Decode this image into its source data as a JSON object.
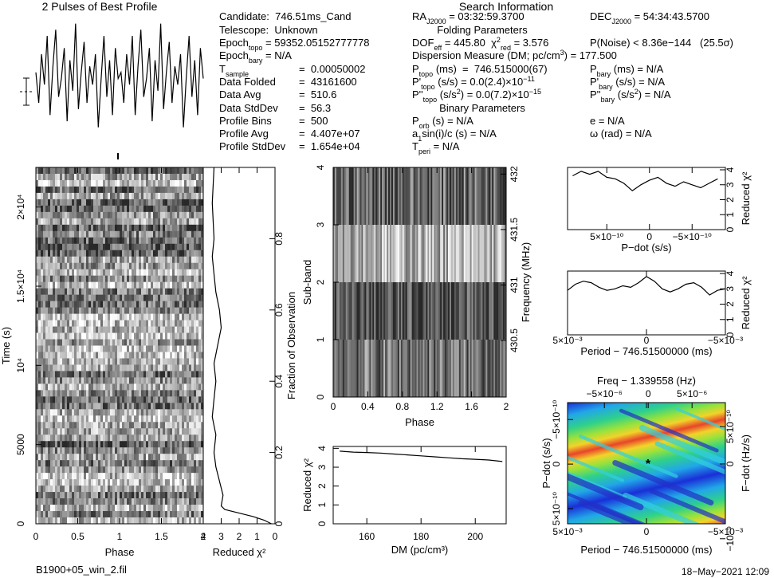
{
  "info": {
    "title": "Search Information",
    "rows": [
      {
        "left": [
          "Candidate:  746.51ms_Cand"
        ],
        "mid": [
          "RA",
          {
            "sub": "J2000"
          },
          " = 03:32:59.3700"
        ],
        "right": [
          "DEC",
          {
            "sub": "J2000"
          },
          " = 54:34:43.5700"
        ]
      },
      {
        "left": [
          "Telescope:  Unknown"
        ],
        "heading": "Folding Parameters"
      },
      {
        "left": [
          "Epoch",
          {
            "sub": "topo"
          },
          " = 59352.05152777778"
        ],
        "mid": [
          "DOF",
          {
            "sub": "eff"
          },
          " = 445.80  χ",
          {
            "sup": "2"
          },
          {
            "sub": "red"
          },
          " = 3.576"
        ],
        "right": [
          "P(Noise) < 8.36e−144   (25.5σ)"
        ]
      },
      {
        "left": [
          "Epoch",
          {
            "sub": "bary"
          },
          " = N/A"
        ],
        "mid": [
          "Dispersion Measure (DM; pc/cm",
          {
            "sup": "3"
          },
          ") = 177.500"
        ]
      },
      {
        "left": [
          "T",
          {
            "sub": "sample"
          }
        ],
        "leftval": "=  0.00050002",
        "mid": [
          "P",
          {
            "sub": "topo"
          },
          " (ms)  =  746.515000(67)"
        ],
        "right": [
          "P",
          {
            "sub": "bary"
          },
          " (ms) = N/A"
        ]
      },
      {
        "left": [
          "Data Folded"
        ],
        "leftval": "=  43161600",
        "mid": [
          "P'",
          {
            "sub": "topo"
          },
          " (s/s) = 0.0(2.4)×10",
          {
            "sup": "−11"
          }
        ],
        "right": [
          "P'",
          {
            "sub": "bary"
          },
          " (s/s) = N/A"
        ]
      },
      {
        "left": [
          "Data Avg"
        ],
        "leftval": "=  510.6",
        "mid": [
          "P''",
          {
            "sub": "topo"
          },
          " (s/s",
          {
            "sup": "2"
          },
          ") = 0.0(7.2)×10",
          {
            "sup": "−15"
          }
        ],
        "right": [
          "P''",
          {
            "sub": "bary"
          },
          " (s/s",
          {
            "sup": "2"
          },
          ") = N/A"
        ]
      },
      {
        "left": [
          "Data StdDev"
        ],
        "leftval": "=  56.3",
        "heading": "Binary Parameters"
      },
      {
        "left": [
          "Profile Bins"
        ],
        "leftval": "=  500",
        "mid": [
          "P",
          {
            "sub": "orb"
          },
          " (s) = N/A"
        ],
        "right": [
          "e = N/A"
        ]
      },
      {
        "left": [
          "Profile Avg"
        ],
        "leftval": "=  4.407e+07",
        "mid": [
          "a",
          {
            "sub": "1"
          },
          "sin(i)/c (s) = N/A"
        ],
        "right": [
          "ω (rad) = N/A"
        ]
      },
      {
        "left": [
          "Profile StdDev"
        ],
        "leftval": "=  1.654e+04",
        "mid": [
          "T",
          {
            "sub": "peri"
          },
          " = N/A"
        ]
      }
    ]
  },
  "footer": {
    "file": "B1900+05_win_2.fil",
    "date": "18−May−2021 12:09"
  },
  "chart_data": [
    {
      "type": "line",
      "title": "2 Pulses of Best Profile",
      "ylim": [
        0,
        1
      ],
      "values": [
        0.55,
        0.3,
        0.7,
        0.45,
        0.85,
        0.2,
        0.6,
        0.9,
        0.35,
        0.5,
        0.75,
        0.15,
        0.65,
        0.4,
        0.95,
        0.25,
        0.55,
        0.8,
        0.3,
        0.6,
        0.45,
        0.7,
        0.1,
        0.5,
        0.85,
        0.35,
        0.65,
        0.2,
        0.75,
        0.5,
        0.55,
        0.3,
        0.7,
        0.45,
        0.85,
        0.2,
        0.6,
        0.9,
        0.35,
        0.5,
        0.75,
        0.15,
        0.65,
        0.4,
        0.95,
        0.25,
        0.55,
        0.8,
        0.3,
        0.6,
        0.45,
        0.7,
        0.1,
        0.5,
        0.85,
        0.35,
        0.65,
        0.2,
        0.75,
        0.5
      ]
    },
    {
      "type": "image",
      "colormap": "gray",
      "xlabel": "Phase",
      "ylabel": "Time (s)",
      "xlim": [
        0,
        2
      ],
      "xticks": [
        0,
        0.5,
        1,
        1.5,
        2
      ],
      "ylim": [
        0,
        22500
      ],
      "yticks": [
        0,
        5000,
        {
          "value": 10000,
          "label": "10⁴"
        },
        {
          "value": 15000,
          "label": "1.5×10⁴"
        },
        {
          "value": 20000,
          "label": "2×10⁴"
        }
      ]
    },
    {
      "type": "line",
      "xlabel": "Reduced χ²",
      "y2label": "Fraction of Observation",
      "xlim": [
        4,
        0
      ],
      "xticks": [
        4,
        3,
        2,
        1,
        0
      ],
      "y2lim": [
        0,
        1
      ],
      "y2ticks": [
        0,
        0.2,
        0.4,
        0.6,
        0.8
      ],
      "values": [
        0.2,
        0.6,
        1.2,
        2.0,
        2.8,
        3.0,
        2.9,
        3.1,
        3.3,
        3.4,
        3.3,
        3.5,
        3.4,
        3.3,
        3.4,
        3.2,
        3.0,
        3.1,
        3.3,
        3.4,
        3.5,
        3.4,
        3.5,
        3.4
      ],
      "y": [
        0,
        0.01,
        0.02,
        0.03,
        0.04,
        0.05,
        0.08,
        0.12,
        0.16,
        0.2,
        0.25,
        0.3,
        0.35,
        0.4,
        0.45,
        0.5,
        0.55,
        0.6,
        0.65,
        0.7,
        0.75,
        0.8,
        0.9,
        1.0
      ]
    },
    {
      "type": "image",
      "colormap": "gray",
      "xlabel": "Phase",
      "ylabel": "Sub-band",
      "y2label": "Frequency (MHz)",
      "xlim": [
        0,
        2
      ],
      "xticks": [
        0,
        0.4,
        0.8,
        1.2,
        1.6,
        2
      ],
      "ylim": [
        0,
        4
      ],
      "yticks": [
        0,
        1,
        2,
        3,
        4
      ],
      "y2lim": [
        429.99,
        432.06
      ],
      "y2ticks": [
        430.5,
        431,
        431.5,
        432
      ]
    },
    {
      "type": "line",
      "xlabel": "DM (pc/cm³)",
      "ylabel": "Reduced χ²",
      "xlim": [
        147.6,
        211.4
      ],
      "xticks": [
        160,
        180,
        200
      ],
      "ylim": [
        0,
        4.1
      ],
      "yticks": [
        0,
        1,
        2,
        3,
        4
      ],
      "x": [
        150,
        155,
        160,
        165,
        170,
        175,
        180,
        185,
        190,
        195,
        200,
        205,
        210
      ],
      "values": [
        3.85,
        3.8,
        3.78,
        3.75,
        3.7,
        3.65,
        3.6,
        3.55,
        3.5,
        3.45,
        3.42,
        3.38,
        3.3
      ]
    },
    {
      "type": "line",
      "xlabel": "P−dot (s/s)",
      "y2label": "Reduced χ²",
      "xlim": [
        9.6e-10,
        -8.9e-10
      ],
      "xticks": [
        {
          "value": 5e-10,
          "label": "5×10⁻¹⁰"
        },
        0,
        {
          "value": -5e-10,
          "label": "−5×10⁻¹⁰"
        }
      ],
      "y2lim": [
        0,
        4.16
      ],
      "y2ticks": [
        0,
        1,
        2,
        3,
        4
      ],
      "x": [
        9e-10,
        8e-10,
        7e-10,
        6e-10,
        5e-10,
        4e-10,
        3e-10,
        2e-10,
        1e-10,
        0,
        -1e-10,
        -2e-10,
        -3e-10,
        -4e-10,
        -5e-10,
        -6e-10,
        -7e-10,
        -8e-10
      ],
      "values": [
        3.6,
        3.9,
        3.7,
        3.9,
        3.5,
        3.4,
        3.1,
        2.6,
        3.0,
        3.3,
        3.5,
        3.1,
        2.9,
        3.2,
        3.0,
        2.8,
        3.1,
        3.4
      ]
    },
    {
      "type": "line",
      "xlabel": "Period − 746.51500000 (ms)",
      "y2label": "Reduced χ²",
      "xlim": [
        0.005,
        -0.005
      ],
      "xticks": [
        {
          "value": 0.005,
          "label": "5×10⁻³"
        },
        0,
        {
          "value": -0.005,
          "label": "−5×10⁻³"
        }
      ],
      "y2lim": [
        0,
        4.16
      ],
      "y2ticks": [
        0,
        1,
        2,
        3,
        4
      ],
      "x": [
        0.005,
        0.0045,
        0.004,
        0.0035,
        0.003,
        0.0025,
        0.002,
        0.0015,
        0.001,
        0.0005,
        0,
        -0.0005,
        -0.001,
        -0.0015,
        -0.002,
        -0.0025,
        -0.003,
        -0.0035,
        -0.004,
        -0.0045,
        -0.005
      ],
      "values": [
        2.9,
        3.3,
        3.5,
        3.4,
        3.1,
        2.9,
        3.0,
        3.2,
        3.1,
        3.4,
        3.8,
        3.5,
        3.0,
        2.8,
        3.0,
        3.3,
        3.4,
        3.1,
        2.6,
        2.9,
        3.0
      ]
    },
    {
      "type": "image",
      "colormap": "rainbow",
      "xlabel": "Period − 746.51500000 (ms)",
      "ylabel": "P−dot (s/s)",
      "y2label": "F−dot (Hz/s)",
      "x2label": "Freq − 1.339558 (Hz)",
      "xlim": [
        0.005,
        -0.005
      ],
      "xticks": [
        {
          "value": 0.005,
          "label": "5×10⁻³"
        },
        0,
        {
          "value": -0.005,
          "label": "−5×10⁻³"
        }
      ],
      "x2lim": [
        -9.2e-06,
        8.8e-06
      ],
      "x2ticks": [
        {
          "value": -5e-06,
          "label": "−5×10⁻⁶"
        },
        0,
        {
          "value": 5e-06,
          "label": "5×10⁻⁶"
        }
      ],
      "ylim": [
        6.7e-10,
        -6.9e-10
      ],
      "yticks": [
        {
          "value": 5e-10,
          "label": "5×10⁻¹⁰"
        },
        0,
        {
          "value": -5e-10,
          "label": "−5×10⁻¹⁰"
        }
      ],
      "y2lim": [
        -8e-10,
        8.2e-10
      ],
      "y2ticks": [
        {
          "value": 5e-10,
          "label": "5×10⁻¹⁰"
        },
        0,
        {
          "value": -1e-09,
          "label": "−10⁻⁹"
        }
      ]
    }
  ]
}
